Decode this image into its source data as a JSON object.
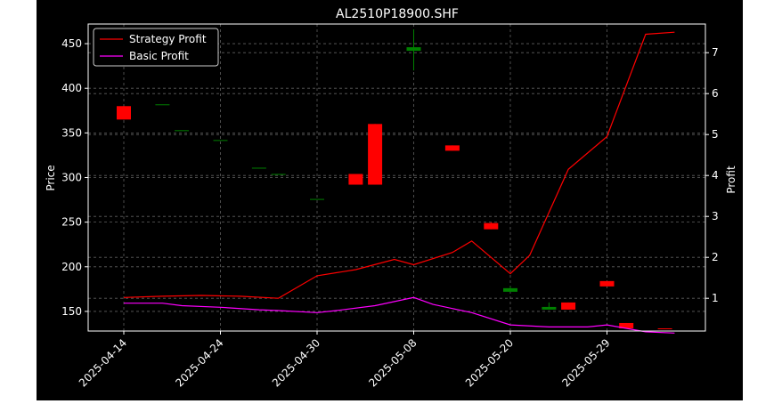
{
  "chart_data": {
    "type": "candlestick+line",
    "title": "AL2510P18900.SHF",
    "ylabel_left": "Price",
    "ylabel_right": "Profit",
    "ylim_left": [
      128,
      472
    ],
    "ylim_right": [
      0.2,
      7.7
    ],
    "left_ticks": [
      150,
      200,
      250,
      300,
      350,
      400,
      450
    ],
    "right_ticks": [
      1,
      2,
      3,
      4,
      5,
      6,
      7
    ],
    "x_tick_labels": [
      "2025-04-14",
      "2025-04-24",
      "2025-04-30",
      "2025-05-08",
      "2025-05-20",
      "2025-05-29"
    ],
    "x_tick_index": [
      0,
      5,
      10,
      15,
      20,
      25
    ],
    "n_points": 29,
    "grid": true,
    "legend_position": "top-left",
    "candles": [
      {
        "i": 0,
        "open": 380,
        "high": 380,
        "low": 365,
        "close": 365
      },
      {
        "i": 2,
        "open": 382,
        "high": 382,
        "low": 382,
        "close": 382
      },
      {
        "i": 3,
        "open": 353,
        "high": 353,
        "low": 353,
        "close": 353
      },
      {
        "i": 5,
        "open": 342,
        "high": 342,
        "low": 342,
        "close": 342
      },
      {
        "i": 7,
        "open": 311,
        "high": 311,
        "low": 311,
        "close": 311
      },
      {
        "i": 8,
        "open": 304,
        "high": 304,
        "low": 304,
        "close": 304
      },
      {
        "i": 10,
        "open": 276,
        "high": 276,
        "low": 276,
        "close": 276
      },
      {
        "i": 12,
        "open": 304,
        "high": 304,
        "low": 292,
        "close": 292
      },
      {
        "i": 13,
        "open": 360,
        "high": 360,
        "low": 292,
        "close": 292
      },
      {
        "i": 15,
        "open": 442,
        "high": 466,
        "low": 420,
        "close": 446
      },
      {
        "i": 17,
        "open": 336,
        "high": 336,
        "low": 330,
        "close": 330
      },
      {
        "i": 19,
        "open": 249,
        "high": 250,
        "low": 242,
        "close": 242
      },
      {
        "i": 20,
        "open": 172,
        "high": 178,
        "low": 172,
        "close": 176
      },
      {
        "i": 22,
        "open": 152,
        "high": 160,
        "low": 152,
        "close": 155
      },
      {
        "i": 23,
        "open": 160,
        "high": 160,
        "low": 152,
        "close": 152
      },
      {
        "i": 25,
        "open": 184,
        "high": 184,
        "low": 178,
        "close": 178
      },
      {
        "i": 26,
        "open": 137,
        "high": 137,
        "low": 131,
        "close": 131
      },
      {
        "i": 28,
        "open": 131,
        "high": 131,
        "low": 130,
        "close": 130
      }
    ],
    "series": [
      {
        "name": "Strategy Profit",
        "color": "#ff0000",
        "x": [
          0,
          2,
          4,
          6,
          8,
          10,
          12,
          14,
          15,
          17,
          18,
          20,
          21,
          23,
          25,
          27,
          28.5
        ],
        "values": [
          1.02,
          1.05,
          1.07,
          1.05,
          1.0,
          1.55,
          1.7,
          1.95,
          1.82,
          2.12,
          2.4,
          1.6,
          2.05,
          4.15,
          4.95,
          7.45,
          7.5
        ]
      },
      {
        "name": "Basic Profit",
        "color": "#ff00ff",
        "x": [
          0,
          2,
          3,
          5,
          7,
          8,
          10,
          11,
          13,
          15,
          16,
          18,
          20,
          22,
          24,
          25,
          27,
          28.5
        ],
        "values": [
          0.88,
          0.88,
          0.82,
          0.78,
          0.72,
          0.7,
          0.65,
          0.7,
          0.82,
          1.02,
          0.85,
          0.65,
          0.35,
          0.3,
          0.3,
          0.35,
          0.18,
          0.15
        ]
      }
    ],
    "colors": {
      "up": "#008000",
      "down": "#ff0000",
      "background": "#000000",
      "grid": "#808080"
    }
  }
}
